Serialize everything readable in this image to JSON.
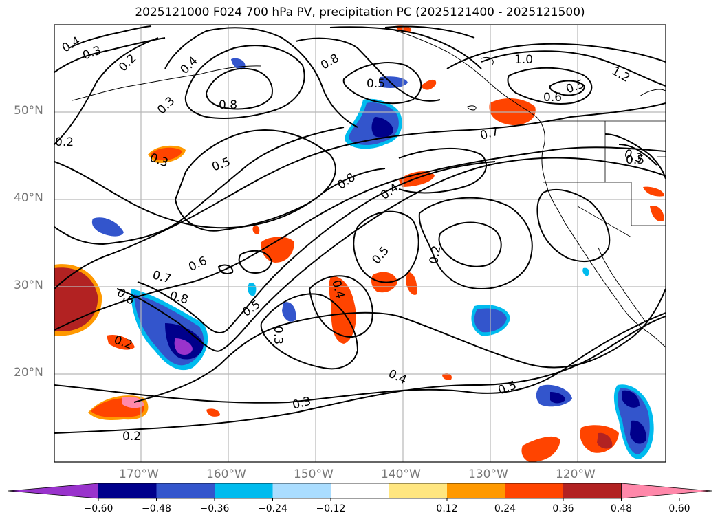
{
  "title": "2025121000 F024 700 hPa PV, precipitation PC (2025121400 - 2025121500)",
  "lat_labels": [
    "50°N",
    "40°N",
    "30°N",
    "20°N"
  ],
  "lon_labels": [
    "170°W",
    "160°W",
    "150°W",
    "140°W",
    "130°W",
    "120°W"
  ],
  "colorbar": {
    "ticks": [
      "−0.60",
      "−0.48",
      "−0.36",
      "−0.24",
      "−0.12",
      "0.12",
      "0.24",
      "0.36",
      "0.48",
      "0.60"
    ],
    "colors": [
      "#9933cc",
      "#00008b",
      "#3355cc",
      "#00bbee",
      "#aaddff",
      "#ffffff",
      "#ffe680",
      "#ff9900",
      "#ff4400",
      "#b22222",
      "#ff88aa"
    ]
  },
  "contour_labels": [
    "0.4",
    "0.3",
    "0.2",
    "0.4",
    "0.3",
    "0.2",
    "0.3",
    "0.8",
    "0.5",
    "0.8",
    "1.0",
    "1.2",
    "0.6",
    "0.5",
    "0.7",
    "0.5",
    "0.8",
    "0.4",
    "0.3",
    "0.5",
    "0.6",
    "0.7",
    "0.8",
    "0.6",
    "0.5",
    "0.5",
    "0.2",
    "0.4",
    "0.3",
    "0.2",
    "0.4",
    "0.5",
    "0.3",
    "0.2"
  ]
}
